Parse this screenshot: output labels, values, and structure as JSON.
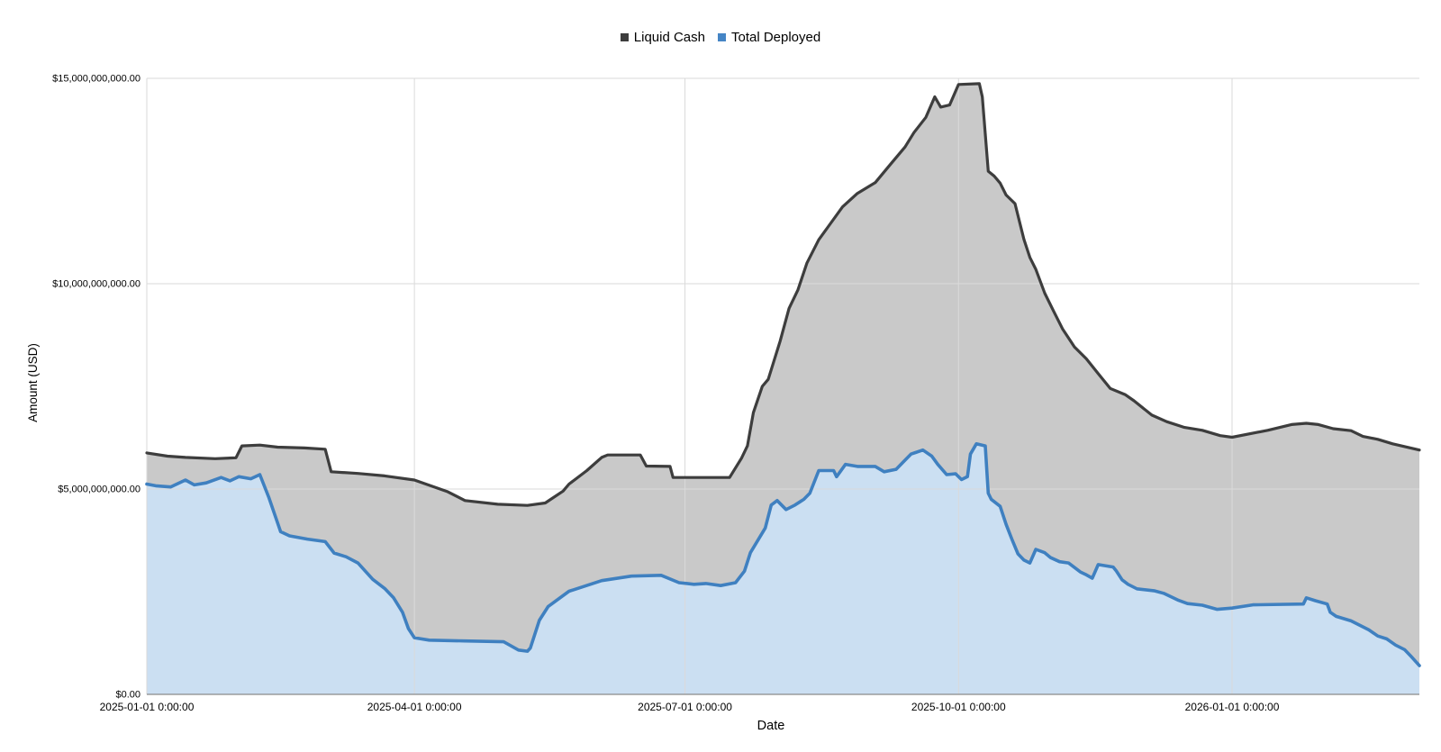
{
  "legend": {
    "items": [
      {
        "label": "Liquid Cash",
        "color": "#3d3d3d"
      },
      {
        "label": "Total Deployed",
        "color": "#4585c5"
      }
    ]
  },
  "axes": {
    "x_title": "Date",
    "y_title": "Amount (USD)"
  },
  "colors": {
    "liquid_line": "#3d3d3d",
    "liquid_fill": "#c9c9c9",
    "deployed_line": "#3f80c0",
    "deployed_fill": "#cbdff2",
    "gridline": "#dadada",
    "axis_line": "#8a8a8a",
    "tick_text": "#000000"
  },
  "chart_data": {
    "type": "area",
    "title": "",
    "xlabel": "Date",
    "ylabel": "Amount (USD)",
    "value_unit": "billion USD",
    "grid": true,
    "legend_position": "top-center",
    "x_range": [
      "2025-01-01",
      "2026-03-05"
    ],
    "ylim": [
      0,
      15
    ],
    "y_ticks": [
      {
        "value": 0,
        "label": "$0.00"
      },
      {
        "value": 5,
        "label": "$5,000,000,000.00"
      },
      {
        "value": 10,
        "label": "$10,000,000,000.00"
      },
      {
        "value": 15,
        "label": "$15,000,000,000.00"
      }
    ],
    "x_ticks": [
      {
        "date": "2025-01-01",
        "label": "2025-01-01 0:00:00"
      },
      {
        "date": "2025-04-01",
        "label": "2025-04-01 0:00:00"
      },
      {
        "date": "2025-07-01",
        "label": "2025-07-01 0:00:00"
      },
      {
        "date": "2025-10-01",
        "label": "2025-10-01 0:00:00"
      },
      {
        "date": "2026-01-01",
        "label": "2026-01-01 0:00:00"
      }
    ],
    "series": [
      {
        "name": "Liquid Cash",
        "line_color": "#3d3d3d",
        "fill_color": "#c9c9c9",
        "points": [
          [
            "2025-01-01",
            5.88
          ],
          [
            "2025-01-08",
            5.8
          ],
          [
            "2025-01-14",
            5.77
          ],
          [
            "2025-01-24",
            5.74
          ],
          [
            "2025-01-31",
            5.76
          ],
          [
            "2025-02-02",
            6.05
          ],
          [
            "2025-02-08",
            6.07
          ],
          [
            "2025-02-14",
            6.02
          ],
          [
            "2025-02-23",
            6.0
          ],
          [
            "2025-03-02",
            5.97
          ],
          [
            "2025-03-04",
            5.42
          ],
          [
            "2025-03-13",
            5.38
          ],
          [
            "2025-03-22",
            5.32
          ],
          [
            "2025-04-01",
            5.22
          ],
          [
            "2025-04-12",
            4.94
          ],
          [
            "2025-04-18",
            4.72
          ],
          [
            "2025-04-29",
            4.63
          ],
          [
            "2025-05-09",
            4.6
          ],
          [
            "2025-05-15",
            4.66
          ],
          [
            "2025-05-21",
            4.95
          ],
          [
            "2025-05-23",
            5.12
          ],
          [
            "2025-05-29",
            5.45
          ],
          [
            "2025-06-03",
            5.77
          ],
          [
            "2025-06-05",
            5.83
          ],
          [
            "2025-06-16",
            5.83
          ],
          [
            "2025-06-18",
            5.56
          ],
          [
            "2025-06-26",
            5.55
          ],
          [
            "2025-06-27",
            5.28
          ],
          [
            "2025-07-16",
            5.28
          ],
          [
            "2025-07-20",
            5.75
          ],
          [
            "2025-07-22",
            6.05
          ],
          [
            "2025-07-24",
            6.86
          ],
          [
            "2025-07-27",
            7.5
          ],
          [
            "2025-07-29",
            7.67
          ],
          [
            "2025-08-02",
            8.6
          ],
          [
            "2025-08-05",
            9.4
          ],
          [
            "2025-08-08",
            9.85
          ],
          [
            "2025-08-11",
            10.5
          ],
          [
            "2025-08-15",
            11.07
          ],
          [
            "2025-08-18",
            11.37
          ],
          [
            "2025-08-23",
            11.87
          ],
          [
            "2025-08-28",
            12.2
          ],
          [
            "2025-09-03",
            12.46
          ],
          [
            "2025-09-08",
            12.9
          ],
          [
            "2025-09-13",
            13.33
          ],
          [
            "2025-09-16",
            13.68
          ],
          [
            "2025-09-20",
            14.05
          ],
          [
            "2025-09-23",
            14.55
          ],
          [
            "2025-09-25",
            14.3
          ],
          [
            "2025-09-28",
            14.35
          ],
          [
            "2025-10-01",
            14.85
          ],
          [
            "2025-10-08",
            14.87
          ],
          [
            "2025-10-09",
            14.55
          ],
          [
            "2025-10-11",
            12.74
          ],
          [
            "2025-10-13",
            12.62
          ],
          [
            "2025-10-15",
            12.45
          ],
          [
            "2025-10-17",
            12.16
          ],
          [
            "2025-10-20",
            11.95
          ],
          [
            "2025-10-23",
            11.08
          ],
          [
            "2025-10-25",
            10.64
          ],
          [
            "2025-10-27",
            10.35
          ],
          [
            "2025-10-30",
            9.77
          ],
          [
            "2025-11-02",
            9.33
          ],
          [
            "2025-11-05",
            8.9
          ],
          [
            "2025-11-09",
            8.46
          ],
          [
            "2025-11-13",
            8.17
          ],
          [
            "2025-11-17",
            7.81
          ],
          [
            "2025-11-21",
            7.45
          ],
          [
            "2025-11-26",
            7.3
          ],
          [
            "2025-11-29",
            7.15
          ],
          [
            "2025-12-05",
            6.8
          ],
          [
            "2025-12-10",
            6.64
          ],
          [
            "2025-12-16",
            6.5
          ],
          [
            "2025-12-22",
            6.43
          ],
          [
            "2025-12-28",
            6.3
          ],
          [
            "2026-01-01",
            6.26
          ],
          [
            "2026-01-13",
            6.43
          ],
          [
            "2026-01-21",
            6.57
          ],
          [
            "2026-01-26",
            6.6
          ],
          [
            "2026-01-30",
            6.57
          ],
          [
            "2026-02-04",
            6.47
          ],
          [
            "2026-02-10",
            6.42
          ],
          [
            "2026-02-14",
            6.28
          ],
          [
            "2026-02-19",
            6.21
          ],
          [
            "2026-02-24",
            6.1
          ],
          [
            "2026-03-05",
            5.95
          ]
        ]
      },
      {
        "name": "Total Deployed",
        "line_color": "#3f80c0",
        "fill_color": "#cbdff2",
        "points": [
          [
            "2025-01-01",
            5.12
          ],
          [
            "2025-01-04",
            5.08
          ],
          [
            "2025-01-09",
            5.05
          ],
          [
            "2025-01-14",
            5.22
          ],
          [
            "2025-01-17",
            5.1
          ],
          [
            "2025-01-21",
            5.15
          ],
          [
            "2025-01-26",
            5.28
          ],
          [
            "2025-01-29",
            5.2
          ],
          [
            "2025-02-01",
            5.3
          ],
          [
            "2025-02-05",
            5.25
          ],
          [
            "2025-02-08",
            5.35
          ],
          [
            "2025-02-11",
            4.8
          ],
          [
            "2025-02-15",
            3.96
          ],
          [
            "2025-02-18",
            3.86
          ],
          [
            "2025-02-24",
            3.78
          ],
          [
            "2025-03-02",
            3.72
          ],
          [
            "2025-03-05",
            3.44
          ],
          [
            "2025-03-09",
            3.35
          ],
          [
            "2025-03-13",
            3.2
          ],
          [
            "2025-03-18",
            2.8
          ],
          [
            "2025-03-22",
            2.58
          ],
          [
            "2025-03-25",
            2.35
          ],
          [
            "2025-03-28",
            2.0
          ],
          [
            "2025-03-30",
            1.6
          ],
          [
            "2025-04-01",
            1.38
          ],
          [
            "2025-04-06",
            1.32
          ],
          [
            "2025-04-18",
            1.3
          ],
          [
            "2025-05-01",
            1.28
          ],
          [
            "2025-05-06",
            1.08
          ],
          [
            "2025-05-09",
            1.05
          ],
          [
            "2025-05-10",
            1.13
          ],
          [
            "2025-05-13",
            1.8
          ],
          [
            "2025-05-16",
            2.14
          ],
          [
            "2025-05-23",
            2.51
          ],
          [
            "2025-06-03",
            2.77
          ],
          [
            "2025-06-13",
            2.88
          ],
          [
            "2025-06-23",
            2.9
          ],
          [
            "2025-06-29",
            2.72
          ],
          [
            "2025-07-04",
            2.68
          ],
          [
            "2025-07-08",
            2.7
          ],
          [
            "2025-07-13",
            2.65
          ],
          [
            "2025-07-18",
            2.72
          ],
          [
            "2025-07-21",
            3.0
          ],
          [
            "2025-07-23",
            3.45
          ],
          [
            "2025-07-28",
            4.05
          ],
          [
            "2025-07-30",
            4.61
          ],
          [
            "2025-08-01",
            4.72
          ],
          [
            "2025-08-04",
            4.5
          ],
          [
            "2025-08-07",
            4.61
          ],
          [
            "2025-08-10",
            4.75
          ],
          [
            "2025-08-12",
            4.9
          ],
          [
            "2025-08-15",
            5.45
          ],
          [
            "2025-08-20",
            5.45
          ],
          [
            "2025-08-21",
            5.3
          ],
          [
            "2025-08-24",
            5.6
          ],
          [
            "2025-08-28",
            5.55
          ],
          [
            "2025-09-03",
            5.55
          ],
          [
            "2025-09-06",
            5.42
          ],
          [
            "2025-09-10",
            5.48
          ],
          [
            "2025-09-15",
            5.85
          ],
          [
            "2025-09-19",
            5.95
          ],
          [
            "2025-09-22",
            5.8
          ],
          [
            "2025-09-24",
            5.6
          ],
          [
            "2025-09-27",
            5.35
          ],
          [
            "2025-09-30",
            5.37
          ],
          [
            "2025-10-02",
            5.23
          ],
          [
            "2025-10-04",
            5.3
          ],
          [
            "2025-10-05",
            5.85
          ],
          [
            "2025-10-07",
            6.1
          ],
          [
            "2025-10-10",
            6.05
          ],
          [
            "2025-10-11",
            4.9
          ],
          [
            "2025-10-12",
            4.75
          ],
          [
            "2025-10-15",
            4.58
          ],
          [
            "2025-10-17",
            4.14
          ],
          [
            "2025-10-19",
            3.77
          ],
          [
            "2025-10-21",
            3.42
          ],
          [
            "2025-10-23",
            3.27
          ],
          [
            "2025-10-25",
            3.2
          ],
          [
            "2025-10-27",
            3.53
          ],
          [
            "2025-10-30",
            3.45
          ],
          [
            "2025-11-01",
            3.33
          ],
          [
            "2025-11-04",
            3.23
          ],
          [
            "2025-11-07",
            3.2
          ],
          [
            "2025-11-11",
            2.98
          ],
          [
            "2025-11-13",
            2.91
          ],
          [
            "2025-11-15",
            2.83
          ],
          [
            "2025-11-17",
            3.16
          ],
          [
            "2025-11-22",
            3.1
          ],
          [
            "2025-11-23",
            3.01
          ],
          [
            "2025-11-25",
            2.79
          ],
          [
            "2025-11-27",
            2.68
          ],
          [
            "2025-11-30",
            2.57
          ],
          [
            "2025-12-06",
            2.52
          ],
          [
            "2025-12-09",
            2.46
          ],
          [
            "2025-12-14",
            2.29
          ],
          [
            "2025-12-17",
            2.21
          ],
          [
            "2025-12-22",
            2.17
          ],
          [
            "2025-12-27",
            2.07
          ],
          [
            "2026-01-01",
            2.1
          ],
          [
            "2026-01-08",
            2.18
          ],
          [
            "2026-01-25",
            2.2
          ],
          [
            "2026-01-26",
            2.35
          ],
          [
            "2026-01-29",
            2.28
          ],
          [
            "2026-02-02",
            2.2
          ],
          [
            "2026-02-03",
            2.0
          ],
          [
            "2026-02-05",
            1.9
          ],
          [
            "2026-02-10",
            1.79
          ],
          [
            "2026-02-13",
            1.68
          ],
          [
            "2026-02-16",
            1.57
          ],
          [
            "2026-02-19",
            1.42
          ],
          [
            "2026-02-22",
            1.35
          ],
          [
            "2026-02-25",
            1.2
          ],
          [
            "2026-02-28",
            1.09
          ],
          [
            "2026-03-02",
            0.94
          ],
          [
            "2026-03-05",
            0.7
          ]
        ]
      }
    ]
  }
}
